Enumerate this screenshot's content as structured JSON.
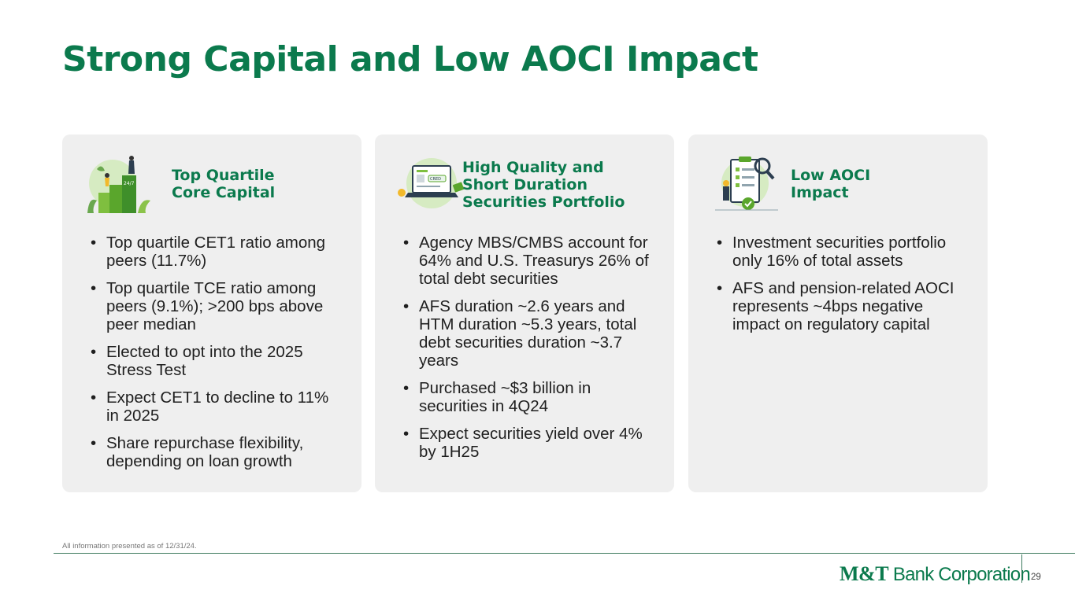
{
  "title": "Strong Capital and Low AOCI Impact",
  "cards": [
    {
      "icon": "podium-people-icon",
      "heading": "Top Quartile\nCore Capital",
      "bullets": [
        "Top quartile CET1 ratio among peers (11.7%)",
        "Top quartile TCE ratio among peers (9.1%); >200 bps above peer median",
        "Elected to opt into the 2025 Stress Test",
        "Expect CET1 to decline to 11% in 2025",
        "Share repurchase flexibility, depending on loan growth"
      ]
    },
    {
      "icon": "laptop-securities-icon",
      "heading": "High Quality and\nShort Duration\nSecurities Portfolio",
      "bullets": [
        "Agency MBS/CMBS account for 64% and U.S. Treasurys 26% of total debt securities",
        "AFS duration ~2.6 years and HTM duration ~5.3 years, total debt securities duration ~3.7 years",
        "Purchased ~$3 billion in securities in 4Q24",
        "Expect securities yield over 4% by 1H25"
      ]
    },
    {
      "icon": "checklist-magnifier-icon",
      "heading": "Low AOCI\nImpact",
      "bullets": [
        "Investment securities portfolio only 16% of total assets",
        "AFS and pension-related AOCI represents ~4bps negative impact on regulatory capital"
      ]
    }
  ],
  "footnote": "All information presented as of 12/31/24.",
  "logo": {
    "mt": "M&T",
    "rest": " Bank Corporation"
  },
  "page_number": "29",
  "colors": {
    "brand_green": "#0b7a4d",
    "card_bg": "#efefef"
  }
}
